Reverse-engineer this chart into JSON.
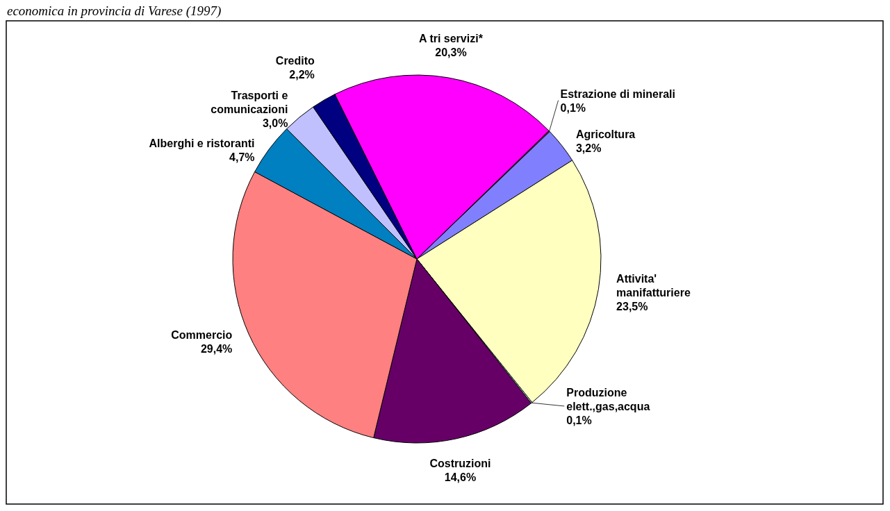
{
  "chart_data": {
    "type": "pie",
    "title": "economica in provincia di Varese (1997)",
    "categories": [
      "Estrazione di minerali",
      "Agricoltura",
      "Attivita' manifatturiere",
      "Produzione elett.,gas,acqua",
      "Costruzioni",
      "Commercio",
      "Alberghi e ristoranti",
      "Trasporti e comunicazioni",
      "Credito",
      "A tri servizi*"
    ],
    "values": [
      0.1,
      3.2,
      23.5,
      0.1,
      14.6,
      29.4,
      4.7,
      3.0,
      2.2,
      20.3
    ],
    "colors": [
      "#993366",
      "#8080ff",
      "#ffffc0",
      "#ccffff",
      "#660066",
      "#ff8080",
      "#0080c0",
      "#c0c0ff",
      "#000080",
      "#ff00ff"
    ],
    "value_labels": [
      "0,1%",
      "3,2%",
      "23,5%",
      "0,1%",
      "14,6%",
      "29,4%",
      "4,7%",
      "3,0%",
      "2,2%",
      "20,3%"
    ]
  }
}
